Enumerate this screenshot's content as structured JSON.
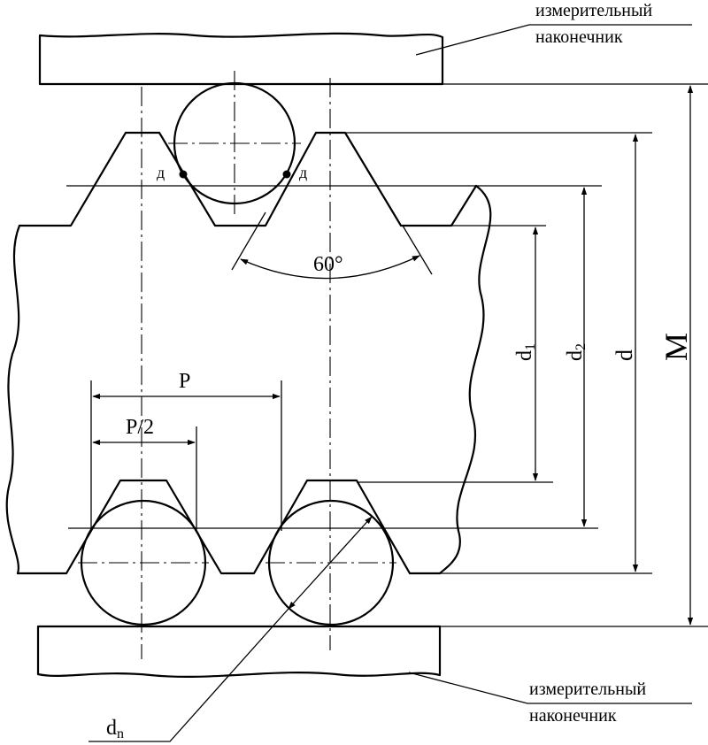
{
  "labels": {
    "probe_top_line1": "измерительный",
    "probe_top_line2": "наконечник",
    "probe_bottom_line1": "измерительный",
    "probe_bottom_line2": "наконечник",
    "contact_left": "д",
    "contact_right": "д",
    "angle": "60°",
    "pitch": "P",
    "half_pitch": "P/2",
    "d1_main": "d",
    "d1_sub": "1",
    "d2_main": "d",
    "d2_sub": "2",
    "d": "d",
    "M": "M",
    "dn_main": "d",
    "dn_sub": "n"
  }
}
